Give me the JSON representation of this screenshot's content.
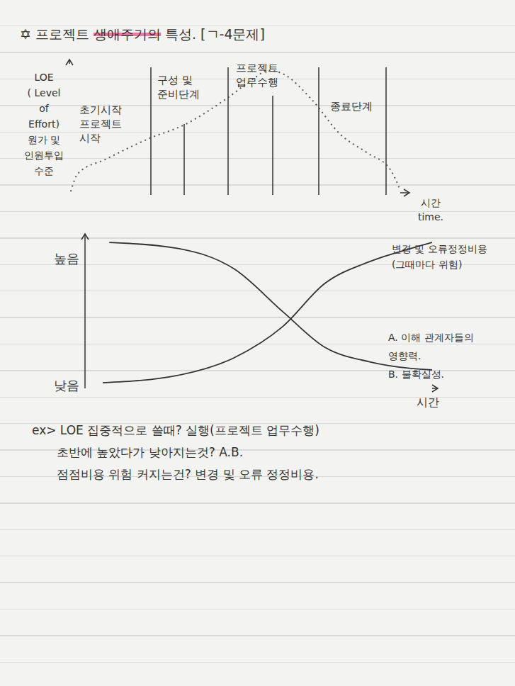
{
  "title": [
    {
      "text": "✡ 프로젝트 "
    },
    {
      "text": "생애주기의",
      "highlight": true
    },
    {
      "text": " 특성. [ㄱ-4문제]"
    }
  ],
  "chart_data": [
    {
      "type": "line",
      "y_label": [
        "LOE",
        "( Level",
        "of",
        "Effort)",
        "원가 및",
        "인원투입",
        "수준"
      ],
      "x_label": [
        "시간",
        "time."
      ],
      "phases": [
        [
          "초기시작",
          "프로젝트",
          "시작"
        ],
        [
          "구성 및",
          "준비단계"
        ],
        [
          "프로젝트",
          "업무수행"
        ],
        [
          "종료단계"
        ]
      ],
      "xlim": [
        0,
        100
      ],
      "ylim": [
        0,
        100
      ],
      "tick_labels": false,
      "series": [
        {
          "color": "#555555",
          "line_style": "dotted",
          "x": [
            0.4,
            2.6,
            11,
            24,
            35,
            47.5,
            56,
            60,
            64.7,
            73,
            82,
            90,
            97,
            100
          ],
          "values": [
            1,
            15,
            26,
            42,
            53,
            73,
            89,
            95,
            92,
            73,
            45,
            31,
            18,
            2
          ]
        }
      ]
    },
    {
      "type": "line",
      "x_label": "시간",
      "xlim": [
        0,
        100
      ],
      "ylim": [
        0,
        100
      ],
      "yticks": [
        {
          "value": 88,
          "label": "높음"
        },
        {
          "value": 2,
          "label": "낮음"
        }
      ],
      "tick_labels": "y",
      "series": [
        {
          "labels": [
            "변경 및 오류정정비용",
            "(그때마다 위험)"
          ],
          "color": "#333333",
          "line_style": "solid",
          "x": [
            5.1,
            26.5,
            42.9,
            57,
            69,
            82,
            94,
            100
          ],
          "values": [
            3.8,
            8.7,
            20.7,
            42,
            71,
            86,
            95,
            99
          ]
        },
        {
          "labels": [
            "A. 이해 관계자들의",
            "영향력.",
            "B. 불확실성."
          ],
          "color": "#333333",
          "line_style": "solid",
          "x": [
            7,
            26.5,
            43,
            57,
            69,
            82,
            94,
            100
          ],
          "values": [
            99,
            95,
            81,
            52,
            28,
            18,
            13.5,
            12.5
          ]
        }
      ]
    }
  ],
  "notes": [
    "ex> LOE 집중적으로 쓸때? 실행(프로젝트 업무수행)",
    "초반에 높았다가 낮아지는것? A.B.",
    "점점비용 위험 커지는건? 변경 및 오류 정정비용."
  ]
}
